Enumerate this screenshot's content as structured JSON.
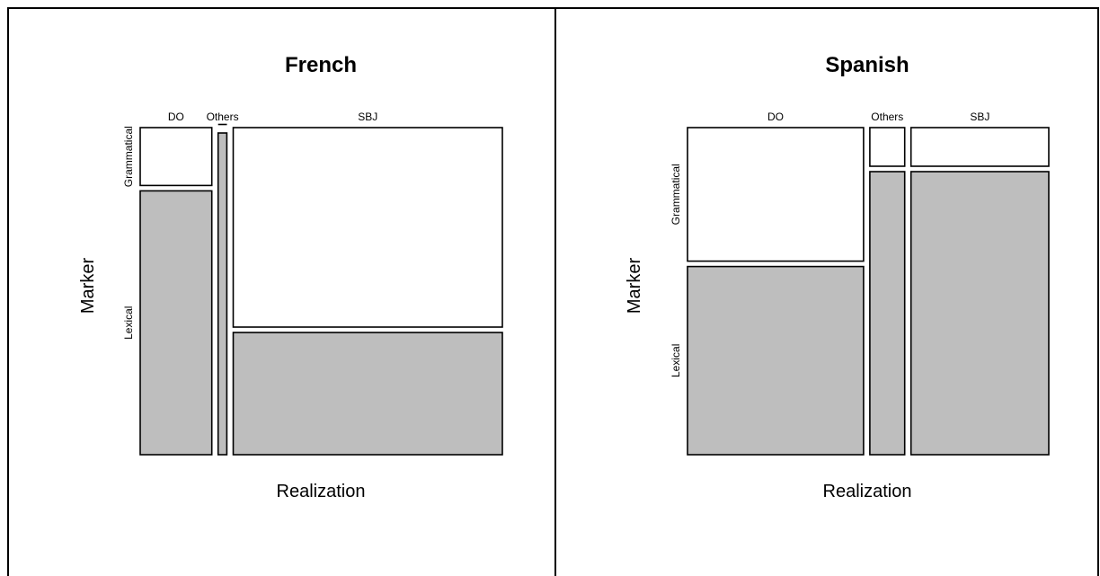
{
  "chart_data": [
    {
      "type": "mosaic",
      "title": "French",
      "xlabel": "Realization",
      "ylabel": "Marker",
      "categories": [
        "DO",
        "Others",
        "SBJ"
      ],
      "column_shares": [
        0.205,
        0.025,
        0.77
      ],
      "row_categories": [
        "Grammatical",
        "Lexical"
      ],
      "series": [
        {
          "name": "Grammatical",
          "values": [
            0.18,
            0.0,
            0.62
          ]
        },
        {
          "name": "Lexical",
          "values": [
            0.82,
            1.0,
            0.38
          ]
        }
      ],
      "colors": {
        "Grammatical": "#ffffff",
        "Lexical": "#bebebe"
      }
    },
    {
      "type": "mosaic",
      "title": "Spanish",
      "xlabel": "Realization",
      "ylabel": "Marker",
      "categories": [
        "DO",
        "Others",
        "SBJ"
      ],
      "column_shares": [
        0.505,
        0.1,
        0.395
      ],
      "row_categories": [
        "Grammatical",
        "Lexical"
      ],
      "series": [
        {
          "name": "Grammatical",
          "values": [
            0.415,
            0.12,
            0.12
          ]
        },
        {
          "name": "Lexical",
          "values": [
            0.585,
            0.88,
            0.88
          ]
        }
      ],
      "colors": {
        "Grammatical": "#ffffff",
        "Lexical": "#bebebe"
      }
    }
  ]
}
